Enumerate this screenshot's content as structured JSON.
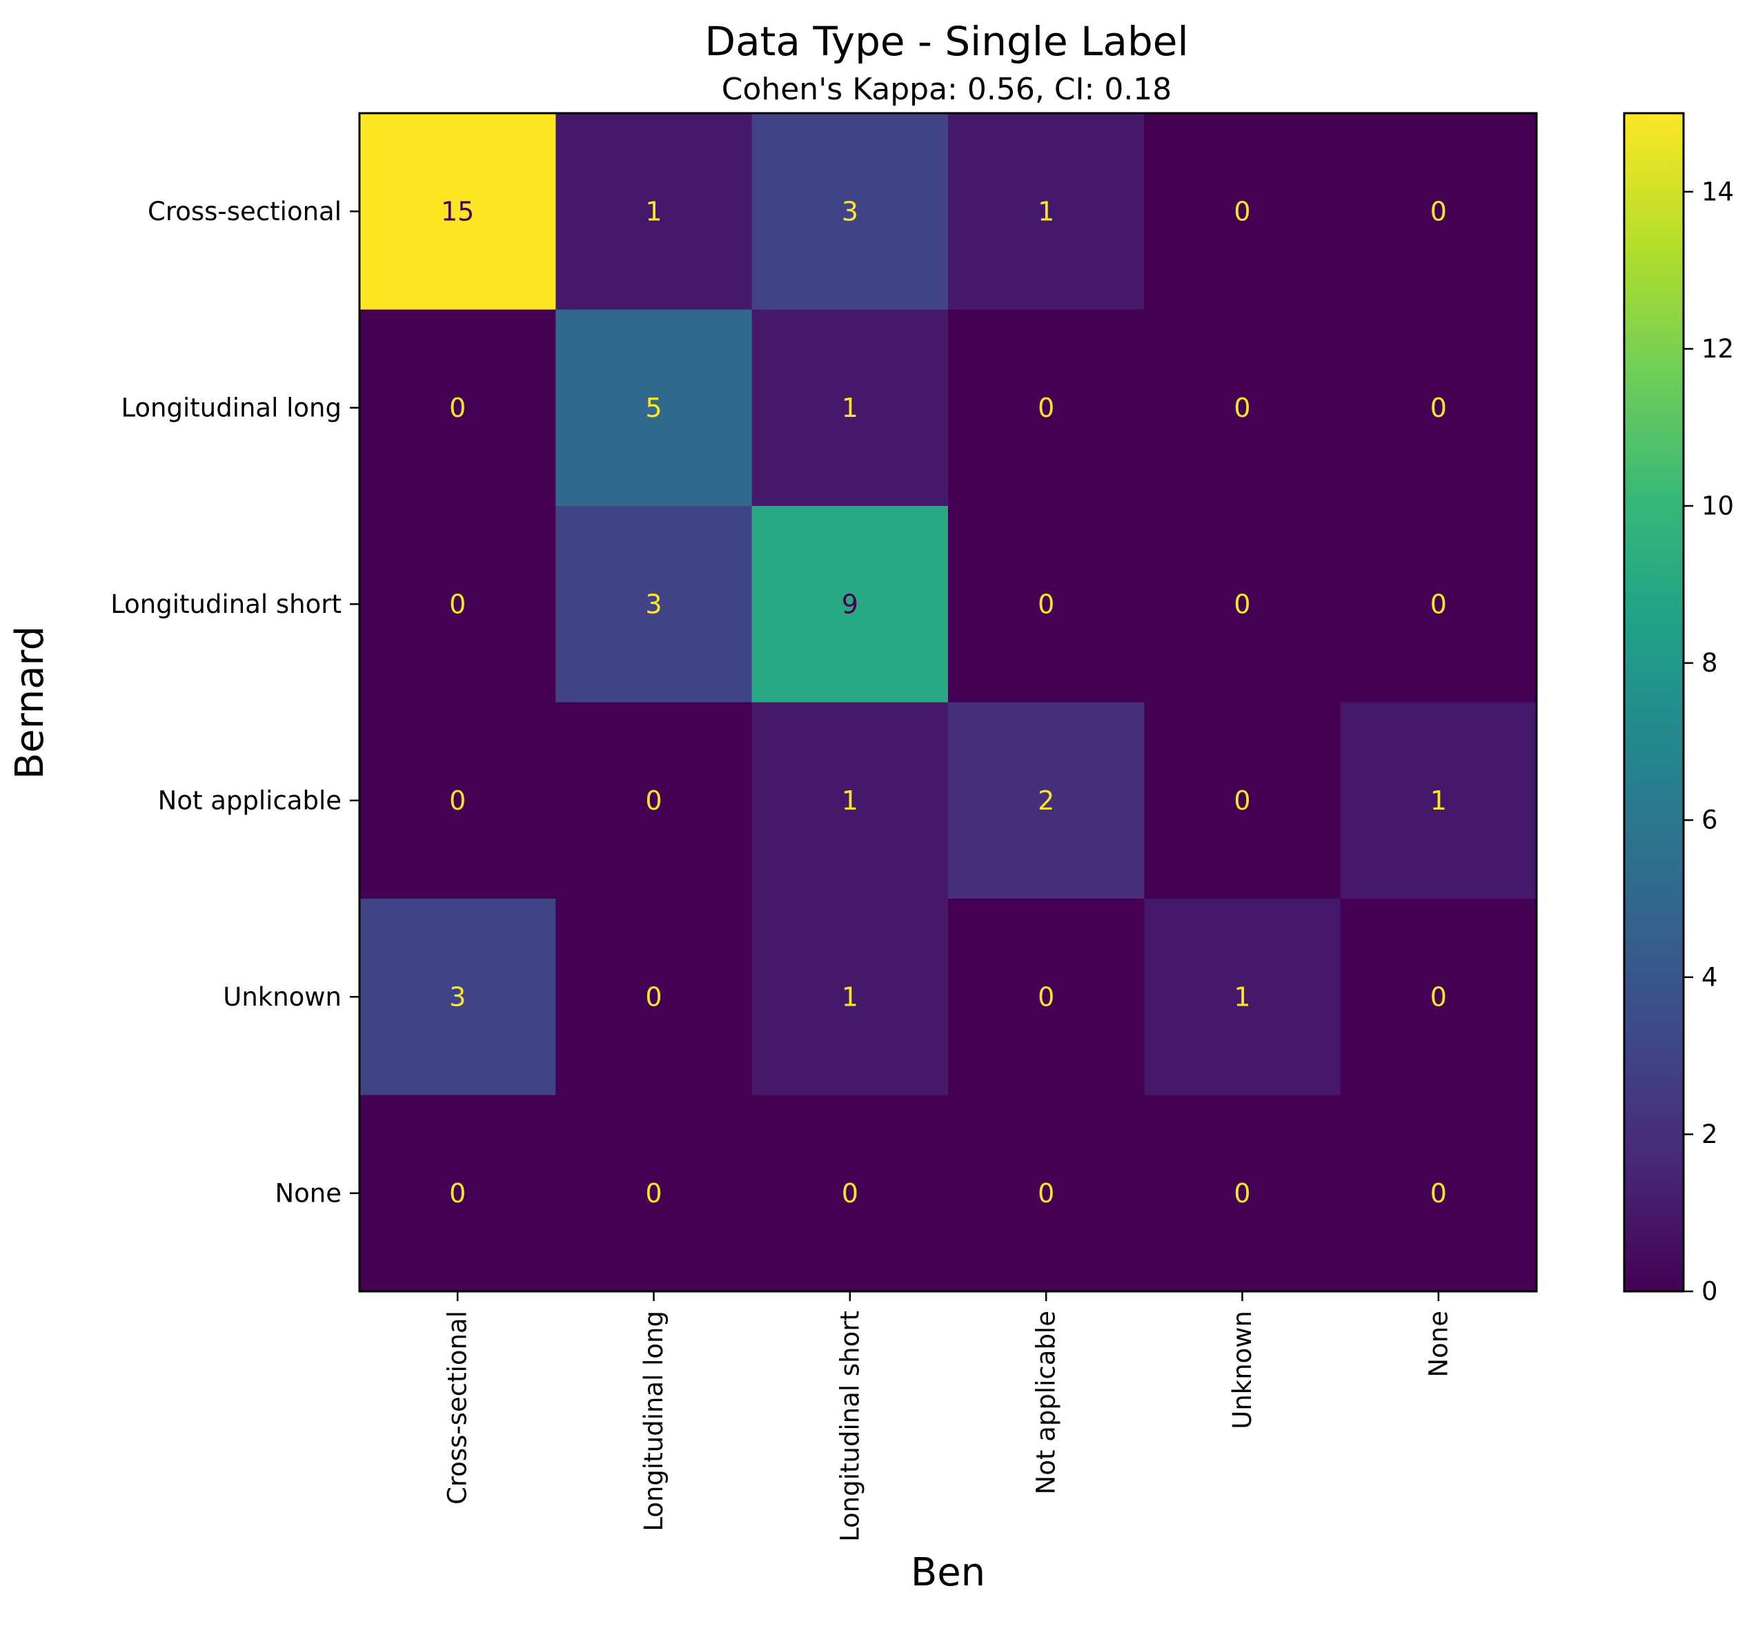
{
  "chart_data": {
    "type": "heatmap",
    "title": "Data Type - Single Label",
    "subtitle": "Cohen's Kappa: 0.56, CI: 0.18",
    "xlabel": "Ben",
    "ylabel": "Bernard",
    "x_categories": [
      "Cross-sectional",
      "Longitudinal long",
      "Longitudinal short",
      "Not applicable",
      "Unknown",
      "None"
    ],
    "y_categories": [
      "Cross-sectional",
      "Longitudinal long",
      "Longitudinal short",
      "Not applicable",
      "Unknown",
      "None"
    ],
    "matrix": [
      [
        15,
        1,
        3,
        1,
        0,
        0
      ],
      [
        0,
        5,
        1,
        0,
        0,
        0
      ],
      [
        0,
        3,
        9,
        0,
        0,
        0
      ],
      [
        0,
        0,
        1,
        2,
        0,
        1
      ],
      [
        3,
        0,
        1,
        0,
        1,
        0
      ],
      [
        0,
        0,
        0,
        0,
        0,
        0
      ]
    ],
    "value_range": [
      0,
      15
    ],
    "colormap": "viridis",
    "colorbar": {
      "ticks": [
        0,
        2,
        4,
        6,
        8,
        10,
        12,
        14
      ],
      "tick_labels": [
        "0",
        "2",
        "4",
        "6",
        "8",
        "10",
        "12",
        "14"
      ]
    },
    "cell_text_colors": {
      "on_dark": "#fde725",
      "on_light": "#440154"
    },
    "grid": false
  }
}
